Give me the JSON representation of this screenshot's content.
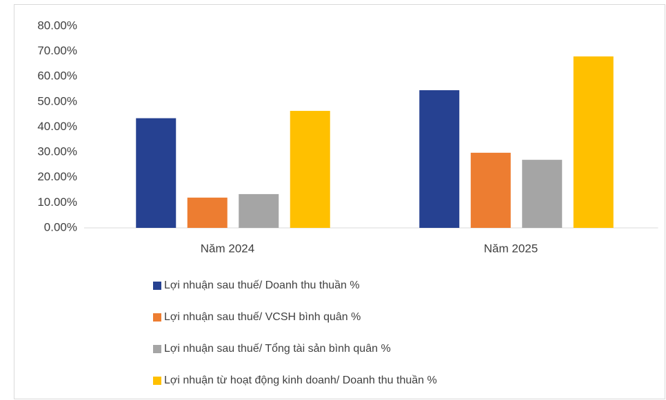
{
  "chart_data": {
    "type": "bar",
    "categories": [
      "Năm 2024",
      "Năm 2025"
    ],
    "series": [
      {
        "name": "Lợi nhuận sau thuế/ Doanh thu thuần %",
        "color": "#264191",
        "values": [
          43.5,
          54.6
        ]
      },
      {
        "name": "Lợi nhuận sau thuế/ VCSH bình quân %",
        "color": "#ed7d31",
        "values": [
          12.0,
          29.8
        ]
      },
      {
        "name": "Lợi nhuận sau thuế/ Tổng tài sản bình quân %",
        "color": "#a5a5a5",
        "values": [
          13.4,
          27.0
        ]
      },
      {
        "name": "Lợi nhuận từ hoạt động kinh doanh/ Doanh thu thuần %",
        "color": "#ffc000",
        "values": [
          46.4,
          68.0
        ]
      }
    ],
    "ylim": [
      0,
      80
    ],
    "yticks": [
      {
        "value": 0,
        "label": "0.00%"
      },
      {
        "value": 10,
        "label": "10.00%"
      },
      {
        "value": 20,
        "label": "20.00%"
      },
      {
        "value": 30,
        "label": "30.00%"
      },
      {
        "value": 40,
        "label": "40.00%"
      },
      {
        "value": 50,
        "label": "50.00%"
      },
      {
        "value": 60,
        "label": "60.00%"
      },
      {
        "value": 70,
        "label": "70.00%"
      },
      {
        "value": 80,
        "label": "80.00%"
      }
    ],
    "legend": "bottom"
  }
}
